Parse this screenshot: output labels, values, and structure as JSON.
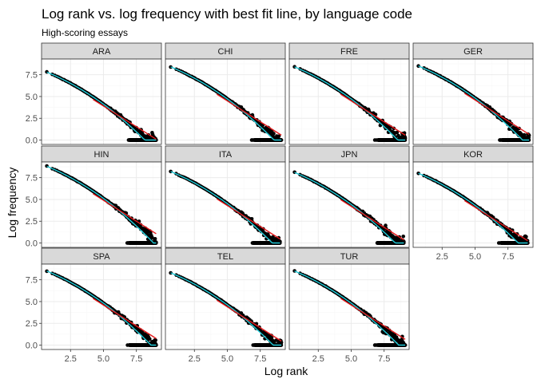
{
  "chart_data": {
    "type": "scatter",
    "title": "Log rank vs. log frequency with best fit line, by language code",
    "subtitle": "High-scoring essays",
    "xlabel": "Log rank",
    "ylabel": "Log frequency",
    "xlim": [
      0.3,
      9.4
    ],
    "ylim": [
      -0.5,
      9.3
    ],
    "x_ticks": [
      2.5,
      5.0,
      7.5
    ],
    "x_tick_labels": [
      "2.5",
      "5.0",
      "7.5"
    ],
    "y_ticks": [
      0.0,
      2.5,
      5.0,
      7.5
    ],
    "y_tick_labels": [
      "0.0",
      "2.5",
      "5.0",
      "7.5"
    ],
    "grid": true,
    "theme": "bw",
    "colors": {
      "points": "#000000",
      "fit_line": "#e41a1c",
      "smooth_line": "#1fc9d6",
      "strip_fill": "#d9d9d9",
      "panel_border": "#333333",
      "grid_major": "#ebebeb",
      "grid_minor": "#f5f5f5"
    },
    "fit_line": {
      "intercept": 9.4,
      "slope": -0.96
    },
    "facets": [
      {
        "label": "ARA",
        "x_max": 9.0,
        "y_start": 7.8
      },
      {
        "label": "CHI",
        "x_max": 9.1,
        "y_start": 8.4
      },
      {
        "label": "FRE",
        "x_max": 9.1,
        "y_start": 8.4
      },
      {
        "label": "GER",
        "x_max": 9.1,
        "y_start": 8.5
      },
      {
        "label": "HIN",
        "x_max": 9.0,
        "y_start": 8.8
      },
      {
        "label": "ITA",
        "x_max": 9.0,
        "y_start": 8.2
      },
      {
        "label": "JPN",
        "x_max": 9.0,
        "y_start": 8.1
      },
      {
        "label": "KOR",
        "x_max": 9.0,
        "y_start": 8.0
      },
      {
        "label": "SPA",
        "x_max": 9.0,
        "y_start": 8.5
      },
      {
        "label": "TEL",
        "x_max": 9.1,
        "y_start": 8.3
      },
      {
        "label": "TUR",
        "x_max": 9.1,
        "y_start": 8.5
      }
    ]
  }
}
